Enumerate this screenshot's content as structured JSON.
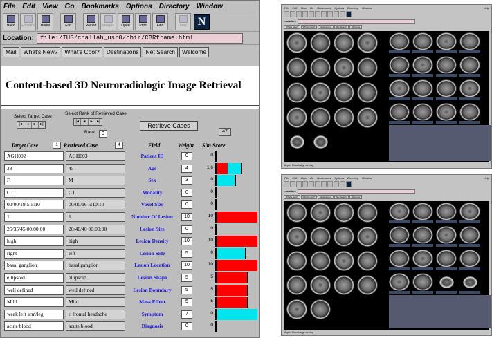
{
  "browser": {
    "menu": [
      "File",
      "Edit",
      "View",
      "Go",
      "Bookmarks",
      "Options",
      "Directory",
      "Window"
    ],
    "toolbar": [
      {
        "label": "Back",
        "icon": "back-arrow-icon",
        "enabled": true
      },
      {
        "label": "Forward",
        "icon": "forward-arrow-icon",
        "enabled": false
      },
      {
        "label": "Home",
        "icon": "home-icon",
        "enabled": true
      },
      {
        "label": "Edit",
        "icon": "edit-icon",
        "enabled": true
      },
      {
        "label": "Reload",
        "icon": "reload-icon",
        "enabled": true
      },
      {
        "label": "Images",
        "icon": "images-icon",
        "enabled": false
      },
      {
        "label": "Open",
        "icon": "open-icon",
        "enabled": true
      },
      {
        "label": "Print",
        "icon": "print-icon",
        "enabled": true
      },
      {
        "label": "Find",
        "icon": "find-icon",
        "enabled": true
      },
      {
        "label": "Stop",
        "icon": "stop-icon",
        "enabled": false
      }
    ],
    "logo": "N",
    "location_label": "Location:",
    "location_url": "file:/IUS/challah_usr0/cbir/CBRframe.html",
    "nav_buttons": [
      "Mail",
      "What's New?",
      "What's Cool?",
      "Destinations",
      "Net Search",
      "Welcome"
    ]
  },
  "page": {
    "title": "Content-based 3D Neuroradiologic Image Retrieval",
    "select_target_label": "Select Target Case",
    "select_rank_label": "Select Rank of Retrieved Case",
    "rank_label": "Rank",
    "rank_value": "0",
    "retrieve_button": "Retrieve Cases",
    "result_count": "47",
    "headers": {
      "target": "Target Case",
      "target_num": "1",
      "retrieved": "Retrieved Case",
      "retrieved_num": "4",
      "field": "Field",
      "weight": "Weight",
      "sim": "Sim Score"
    },
    "rows": [
      {
        "target": "AGH002",
        "retrieved": "AGH003",
        "field": "Patient ID",
        "weight": "0",
        "sim": "0",
        "red": 0,
        "cyan": 0
      },
      {
        "target": "33",
        "retrieved": "45",
        "field": "Age",
        "weight": "4",
        "sim": "1.6",
        "red": 0.27,
        "cyan": 0.33
      },
      {
        "target": "F",
        "retrieved": "M",
        "field": "Sex",
        "weight": "3",
        "sim": "0",
        "red": 0,
        "cyan": 0.44
      },
      {
        "target": "CT",
        "retrieved": "CT",
        "field": "Modality",
        "weight": "0",
        "sim": "0",
        "red": 0,
        "cyan": 0
      },
      {
        "target": "00/00/19 5:5:10",
        "retrieved": "00/00/16 5:10:10",
        "field": "Voxel Size",
        "weight": "0",
        "sim": "0",
        "red": 0,
        "cyan": 0
      },
      {
        "target": "1",
        "retrieved": "1",
        "field": "Number Of Lesion",
        "weight": "10",
        "sim": "10",
        "red": 1,
        "cyan": 0
      },
      {
        "target": "25/35/45 00:00:00",
        "retrieved": "20/40/40 00:00:00",
        "field": "Lesion Size",
        "weight": "0",
        "sim": "0",
        "red": 0,
        "cyan": 0
      },
      {
        "target": "high",
        "retrieved": "high",
        "field": "Lesion Density",
        "weight": "10",
        "sim": "10",
        "red": 1,
        "cyan": 0
      },
      {
        "target": "right",
        "retrieved": "left",
        "field": "Lesion Side",
        "weight": "5",
        "sim": "0",
        "red": 0,
        "cyan": 0.7
      },
      {
        "target": "basal ganglion",
        "retrieved": "basal ganglion",
        "field": "Lesion Location",
        "weight": "10",
        "sim": "10",
        "red": 1,
        "cyan": 0
      },
      {
        "target": "ellipsoid",
        "retrieved": "ellipsoid",
        "field": "Lesion Shape",
        "weight": "5",
        "sim": "5",
        "red": 0.75,
        "cyan": 0
      },
      {
        "target": "well defined",
        "retrieved": "well defined",
        "field": "Lesion Boundary",
        "weight": "5",
        "sim": "5",
        "red": 0.75,
        "cyan": 0
      },
      {
        "target": "Mild",
        "retrieved": "Mild",
        "field": "Mass Effect",
        "weight": "5",
        "sim": "5",
        "red": 0.75,
        "cyan": 0
      },
      {
        "target": "weak left arm/leg",
        "retrieved": "r. frontal headache",
        "field": "Symptom",
        "weight": "7",
        "sim": "0",
        "red": 0,
        "cyan": 1
      },
      {
        "target": "acute blood",
        "retrieved": "acute blood",
        "field": "Diagnosis",
        "weight": "0",
        "sim": "0",
        "red": 0,
        "cyan": 0
      }
    ]
  },
  "mini_browser": {
    "menu": [
      "File",
      "Edit",
      "View",
      "Go",
      "Bookmarks",
      "Options",
      "Directory",
      "Window"
    ],
    "help": "Help",
    "location_label": "Location:",
    "nav_buttons": [
      "What's New?",
      "What's Cool?",
      "Destinations",
      "Net Search",
      "Welcome"
    ],
    "status": "Applet ShowImage running"
  },
  "colors": {
    "red": "#ff0000",
    "cyan": "#00e5ee",
    "field_blue": "#1a1ad6",
    "location_pink": "#eccfd6"
  }
}
